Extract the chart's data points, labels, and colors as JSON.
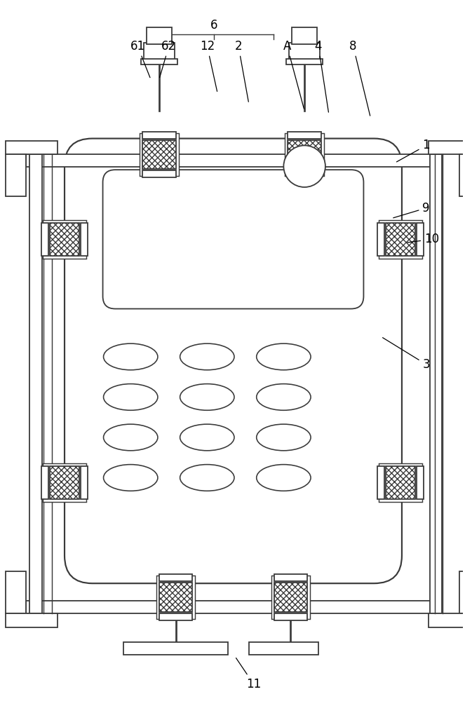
{
  "bg_color": "#ffffff",
  "line_color": "#3a3a3a",
  "line_width": 1.3,
  "label_fontsize": 12,
  "fig_width": 6.63,
  "fig_height": 10.0
}
